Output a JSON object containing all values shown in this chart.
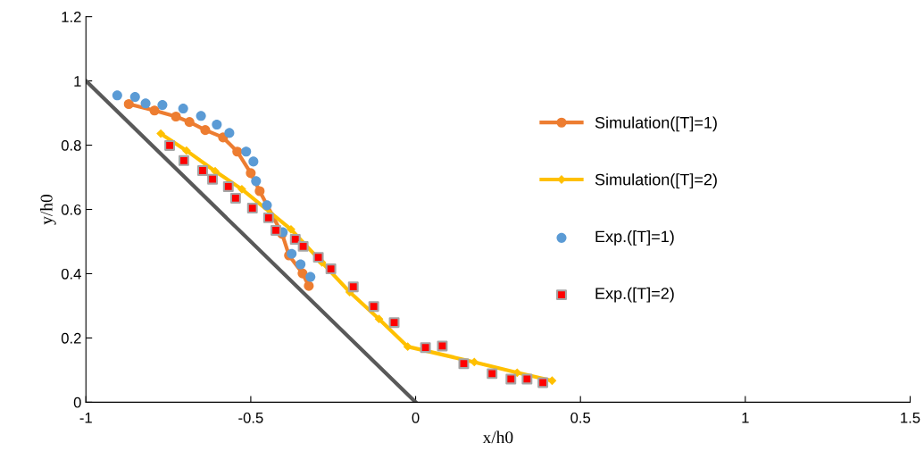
{
  "chart_data": {
    "type": "line",
    "xlabel": "x/h0",
    "ylabel": "y/h0",
    "xlim": [
      -1,
      1.5
    ],
    "xticks": [
      -1,
      -0.5,
      0,
      0.5,
      1,
      1.5
    ],
    "ylim": [
      0,
      1.2
    ],
    "yticks": [
      0,
      0.2,
      0.4,
      0.6,
      0.8,
      1,
      1.2
    ],
    "grid": false,
    "legend": "right",
    "series": [
      {
        "color": "#595959",
        "marker": "none",
        "x": [
          -1,
          0
        ],
        "values": [
          1,
          0
        ]
      },
      {
        "name": "Simulation([T]=1)",
        "type": "line",
        "color": "#ed7d31",
        "marker": "circle",
        "x": [
          -0.87,
          -0.792,
          -0.727,
          -0.686,
          -0.638,
          -0.584,
          -0.541,
          -0.5,
          -0.473,
          -0.405,
          -0.384,
          -0.343,
          -0.324
        ],
        "values": [
          0.928,
          0.908,
          0.889,
          0.872,
          0.847,
          0.824,
          0.78,
          0.713,
          0.657,
          0.524,
          0.457,
          0.401,
          0.362
        ]
      },
      {
        "name": "Simulation([T]=2)",
        "type": "line",
        "color": "#ffc000",
        "marker": "diamond",
        "x": [
          -0.773,
          -0.695,
          -0.608,
          -0.527,
          -0.378,
          -0.284,
          -0.2,
          -0.111,
          -0.024,
          0.178,
          0.308,
          0.414
        ],
        "values": [
          0.836,
          0.783,
          0.719,
          0.663,
          0.538,
          0.435,
          0.343,
          0.259,
          0.173,
          0.125,
          0.092,
          0.067
        ]
      },
      {
        "name": "Exp.([T]=1)",
        "type": "scatter",
        "color": "#5b9bd5",
        "marker": "circle",
        "x": [
          -0.905,
          -0.851,
          -0.819,
          -0.768,
          -0.705,
          -0.651,
          -0.603,
          -0.565,
          -0.514,
          -0.492,
          -0.484,
          -0.451,
          -0.403,
          -0.376,
          -0.349,
          -0.319
        ],
        "values": [
          0.955,
          0.95,
          0.93,
          0.925,
          0.914,
          0.891,
          0.864,
          0.838,
          0.78,
          0.749,
          0.688,
          0.613,
          0.529,
          0.462,
          0.429,
          0.39
        ]
      },
      {
        "name": "Exp.([T]=2)",
        "type": "scatter",
        "color": "#ff0000",
        "marker": "square",
        "x": [
          -0.746,
          -0.703,
          -0.646,
          -0.616,
          -0.568,
          -0.546,
          -0.495,
          -0.446,
          -0.424,
          -0.365,
          -0.341,
          -0.295,
          -0.257,
          -0.189,
          -0.127,
          -0.065,
          0.03,
          0.081,
          0.146,
          0.232,
          0.289,
          0.338,
          0.386
        ],
        "values": [
          0.799,
          0.752,
          0.721,
          0.694,
          0.671,
          0.635,
          0.604,
          0.574,
          0.535,
          0.507,
          0.485,
          0.451,
          0.415,
          0.359,
          0.298,
          0.248,
          0.17,
          0.175,
          0.12,
          0.089,
          0.072,
          0.072,
          0.061
        ]
      }
    ]
  }
}
